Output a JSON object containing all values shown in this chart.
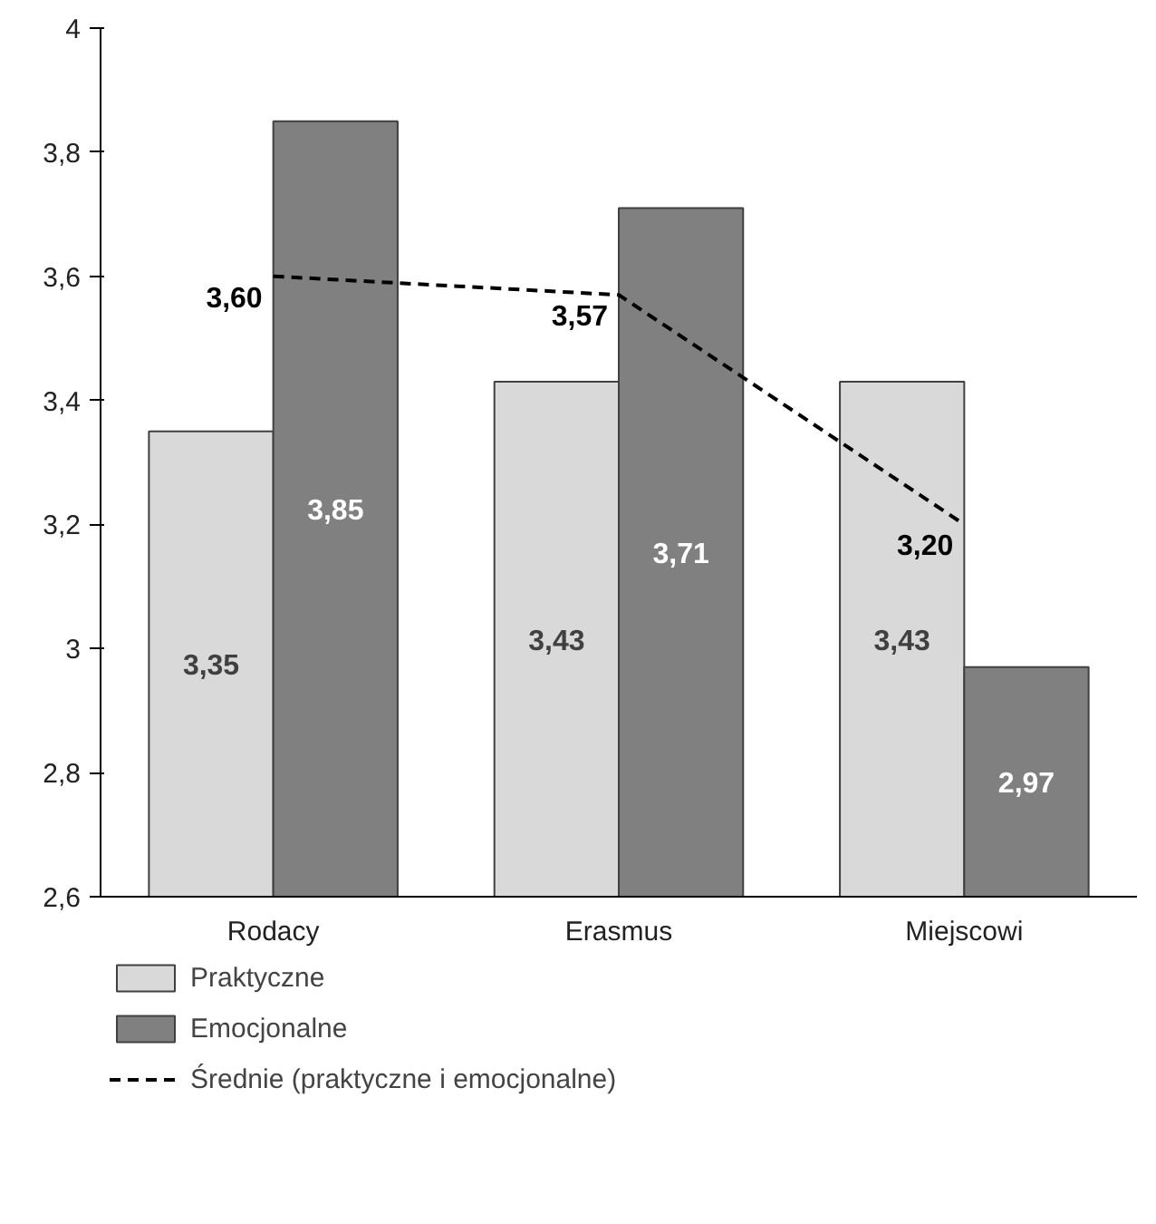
{
  "chart_data": {
    "type": "bar",
    "categories": [
      "Rodacy",
      "Erasmus",
      "Miejscowi"
    ],
    "series": [
      {
        "name": "Praktyczne",
        "color": "#d9d9d9",
        "values": [
          3.35,
          3.43,
          3.43
        ],
        "value_labels": [
          "3,35",
          "3,43",
          "3,43"
        ]
      },
      {
        "name": "Emocjonalne",
        "color": "#808080",
        "values": [
          3.85,
          3.71,
          2.97
        ],
        "value_labels": [
          "3,85",
          "3,71",
          "2,97"
        ]
      },
      {
        "name": "Średnie (praktyczne i emocjonalne)",
        "type": "line",
        "color": "#000000",
        "line_style": "dashed",
        "values": [
          3.6,
          3.57,
          3.2
        ],
        "value_labels": [
          "3,60",
          "3,57",
          "3,20"
        ]
      }
    ],
    "ylim": [
      2.6,
      4
    ],
    "yticks": [
      {
        "value": 2.6,
        "label": "2,6"
      },
      {
        "value": 2.8,
        "label": "2,8"
      },
      3,
      {
        "value": 3.2,
        "label": "3,2"
      },
      {
        "value": 3.4,
        "label": "3,4"
      },
      {
        "value": 3.6,
        "label": "3,6"
      },
      {
        "value": 3.8,
        "label": "3,8"
      },
      4
    ],
    "grid": false,
    "legend": "bottom"
  }
}
